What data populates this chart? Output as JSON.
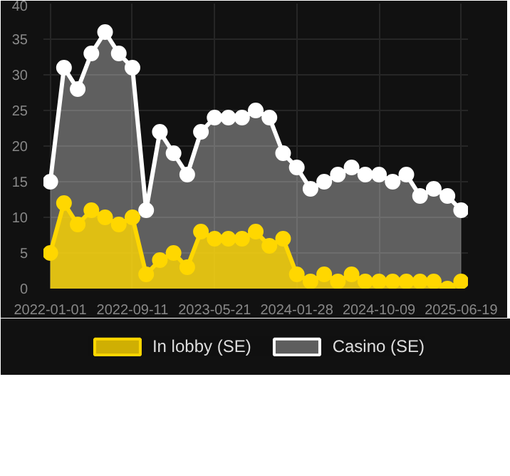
{
  "chart_data": {
    "type": "area",
    "categories": [
      "2022-01-01",
      null,
      null,
      null,
      null,
      null,
      "2022-09-11",
      null,
      null,
      null,
      null,
      null,
      "2023-05-21",
      null,
      null,
      null,
      null,
      null,
      "2024-01-28",
      null,
      null,
      null,
      null,
      null,
      "2024-10-09",
      null,
      null,
      null,
      null,
      null,
      "2025-06-19"
    ],
    "series": [
      {
        "name": "Casino (SE)",
        "color": "#ffffff",
        "values": [
          15,
          31,
          28,
          33,
          36,
          33,
          31,
          11,
          22,
          19,
          16,
          22,
          24,
          24,
          24,
          25,
          24,
          19,
          17,
          14,
          15,
          16,
          17,
          16,
          16,
          15,
          16,
          13,
          14,
          13,
          11
        ]
      },
      {
        "name": "In lobby (SE)",
        "color": "#ffd700",
        "values": [
          5,
          12,
          9,
          11,
          10,
          9,
          10,
          2,
          4,
          5,
          3,
          8,
          7,
          7,
          7,
          8,
          6,
          7,
          2,
          1,
          2,
          1,
          2,
          1,
          1,
          1,
          1,
          1,
          1,
          0,
          1
        ]
      }
    ],
    "ylim": [
      0,
      40
    ],
    "yticks": [
      0,
      5,
      10,
      15,
      20,
      25,
      30,
      35,
      40
    ],
    "grid": true,
    "marker": "circle",
    "legend": "bottom"
  }
}
